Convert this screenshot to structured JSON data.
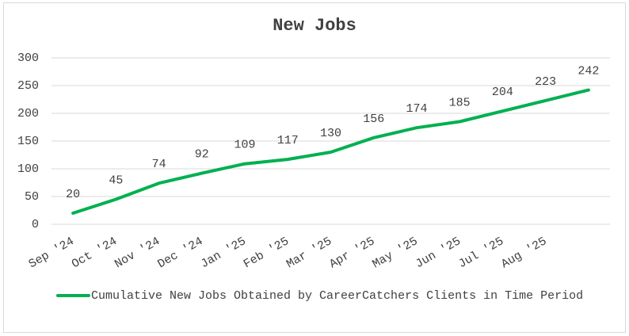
{
  "chart_data": {
    "type": "line",
    "title": "New Jobs",
    "categories": [
      "Sep '24",
      "Oct '24",
      "Nov '24",
      "Dec '24",
      "Jan '25",
      "Feb '25",
      "Mar '25",
      "Apr '25",
      "May '25",
      "Jun '25",
      "Jul '25",
      "Aug '25",
      null
    ],
    "series": [
      {
        "name": "Cumulative New Jobs Obtained by CareerCatchers Clients in Time Period",
        "color": "#00b050",
        "values": [
          20,
          45,
          74,
          92,
          109,
          117,
          130,
          156,
          174,
          185,
          204,
          223,
          242
        ]
      }
    ],
    "ylim": [
      0,
      300
    ],
    "yticks": [
      0,
      50,
      100,
      150,
      200,
      250,
      300
    ],
    "grid": true,
    "legend": "bottom"
  }
}
